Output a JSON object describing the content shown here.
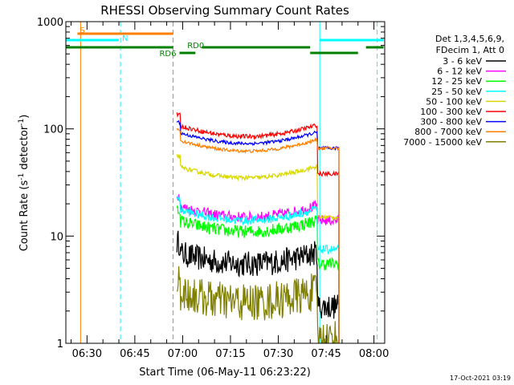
{
  "chart_data": {
    "type": "line",
    "title": "RHESSI Observing Summary Count Rates",
    "xlabel": "Start Time (06-May-11 06:23:22)",
    "ylabel_main": "Count Rate (s",
    "ylabel_sup1": "-1",
    "ylabel_mid": " detector",
    "ylabel_sup2": "-1",
    "ylabel_end": ")",
    "y_scale": "log",
    "ylim": [
      1,
      1000
    ],
    "xlim_minutes": [
      23.37,
      123.37
    ],
    "x_ticks": [
      {
        "m": 30,
        "label": "06:30"
      },
      {
        "m": 45,
        "label": "06:45"
      },
      {
        "m": 60,
        "label": "07:00"
      },
      {
        "m": 75,
        "label": "07:15"
      },
      {
        "m": 90,
        "label": "07:30"
      },
      {
        "m": 105,
        "label": "07:45"
      },
      {
        "m": 120,
        "label": "08:00"
      }
    ],
    "y_ticks": [
      {
        "v": 1,
        "label": "1"
      },
      {
        "v": 10,
        "label": "10"
      },
      {
        "v": 100,
        "label": "100"
      },
      {
        "v": 1000,
        "label": "1000"
      }
    ],
    "legend_header": [
      "Det 1,3,4,5,6,9,",
      "FDecim 1, Att 0"
    ],
    "series": [
      {
        "name": "3 - 6 keV",
        "color": "#000000",
        "level": 5.5,
        "noise": 0.12,
        "drop": 2.2
      },
      {
        "name": "6 - 12 keV",
        "color": "#ff00ff",
        "level": 15,
        "noise": 0.05,
        "drop": 14
      },
      {
        "name": "12 - 25 keV",
        "color": "#00ff00",
        "level": 11,
        "noise": 0.06,
        "drop": 5.5
      },
      {
        "name": "25 - 50 keV",
        "color": "#00ffff",
        "level": 14,
        "noise": 0.04,
        "drop": 7.5
      },
      {
        "name": "50 - 100 keV",
        "color": "#d8d800",
        "level": 35,
        "noise": 0.02,
        "drop": 15
      },
      {
        "name": "100 - 300 keV",
        "color": "#ff0000",
        "level": 85,
        "noise": 0.02,
        "drop": 38
      },
      {
        "name": "300 - 800 keV",
        "color": "#0000ff",
        "level": 73,
        "noise": 0.015,
        "drop": 66
      },
      {
        "name": "800 - 7000 keV",
        "color": "#ff8000",
        "level": 62,
        "noise": 0.015,
        "drop": 66
      },
      {
        "name": "7000 - 15000 keV",
        "color": "#808000",
        "level": 2.4,
        "noise": 0.18,
        "drop": 1.1
      }
    ],
    "data_start_minute": 58.2,
    "data_break_minute": 102.3,
    "data_end_minute": 109.0,
    "flags": {
      "saa": {
        "label": "S",
        "color": "#ff8000",
        "start": 27.0,
        "end": 57.0
      },
      "night": {
        "label": "N",
        "color": "#00ffff",
        "segments": [
          [
            23.4,
            40.0
          ],
          [
            103.0,
            123.0
          ]
        ]
      },
      "rd0": {
        "label": "RD0",
        "color": "#008000",
        "segments": [
          [
            23.4,
            57.0
          ],
          [
            66.0,
            100.0
          ],
          [
            117.5,
            123.0
          ]
        ]
      },
      "rd6": {
        "label": "RD6",
        "color": "#008000",
        "segments": [
          [
            59.0,
            64.0
          ],
          [
            100.0,
            115.0
          ]
        ]
      }
    },
    "vlines": [
      {
        "m": 28.0,
        "color": "#ff8000",
        "dash": false
      },
      {
        "m": 40.5,
        "color": "#00ffff",
        "dash": true
      },
      {
        "m": 57.0,
        "color": "#ff8000",
        "dash": true
      },
      {
        "m": 103.0,
        "color": "#00ffff",
        "dash": false
      },
      {
        "m": 121.0,
        "color": "#00ffff",
        "dash": true
      }
    ],
    "timestamp": "17-Oct-2021 03:19"
  }
}
